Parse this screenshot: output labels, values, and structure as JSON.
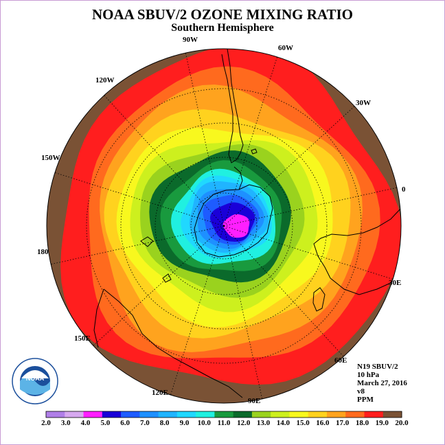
{
  "title": "NOAA SBUV/2 OZONE MIXING RATIO",
  "subtitle": "Southern Hemisphere",
  "longitude_labels": [
    "90W",
    "60W",
    "30W",
    "0",
    "30E",
    "60E",
    "90E",
    "120E",
    "150E",
    "180",
    "150W",
    "120W"
  ],
  "info": {
    "instrument": "N19 SBUV/2",
    "pressure": "10 hPa",
    "date": "March 27, 2016",
    "version": "v8",
    "units": "PPM"
  },
  "logo": {
    "text": "NOAA",
    "ring_text": "NATIONAL OCEANIC AND ATMOSPHERIC ADMINISTRATION · U.S. DEPARTMENT OF COMMERCE"
  },
  "colorbar": {
    "labels": [
      "2.0",
      "3.0",
      "4.0",
      "5.0",
      "6.0",
      "7.0",
      "8.0",
      "9.0",
      "10.0",
      "11.0",
      "12.0",
      "13.0",
      "14.0",
      "15.0",
      "16.0",
      "17.0",
      "18.0",
      "19.0",
      "20.0"
    ],
    "colors": [
      "#b07fe8",
      "#d7a9f0",
      "#ff1fff",
      "#1a00d8",
      "#1e5cff",
      "#1e90ff",
      "#20b4ff",
      "#20d8ff",
      "#20f0e0",
      "#199a3e",
      "#0b6a2b",
      "#9ad21e",
      "#cdf01e",
      "#f8f81e",
      "#ffd21e",
      "#ffa31e",
      "#ff6a1e",
      "#ff1e1e",
      "#7a5235"
    ]
  },
  "map": {
    "field_levels": [
      {
        "value": 19.0,
        "color": "#ff1e1e"
      },
      {
        "value": 18.0,
        "color": "#ff6a1e"
      },
      {
        "value": 17.0,
        "color": "#ffa31e"
      },
      {
        "value": 16.0,
        "color": "#ffd21e"
      },
      {
        "value": 15.0,
        "color": "#f8f81e"
      },
      {
        "value": 14.0,
        "color": "#cdf01e"
      },
      {
        "value": 13.0,
        "color": "#9ad21e"
      },
      {
        "value": 12.0,
        "color": "#0b6a2b"
      },
      {
        "value": 11.0,
        "color": "#199a3e"
      },
      {
        "value": 10.0,
        "color": "#20f0e0"
      },
      {
        "value": 9.0,
        "color": "#20d8ff"
      },
      {
        "value": 8.0,
        "color": "#20b4ff"
      },
      {
        "value": 7.0,
        "color": "#1e90ff"
      },
      {
        "value": 6.0,
        "color": "#1e5cff"
      },
      {
        "value": 5.0,
        "color": "#1a00d8"
      },
      {
        "value": 4.0,
        "color": "#ff1fff"
      }
    ],
    "no_data_color": "#7a5235",
    "grid_color": "#000000"
  }
}
